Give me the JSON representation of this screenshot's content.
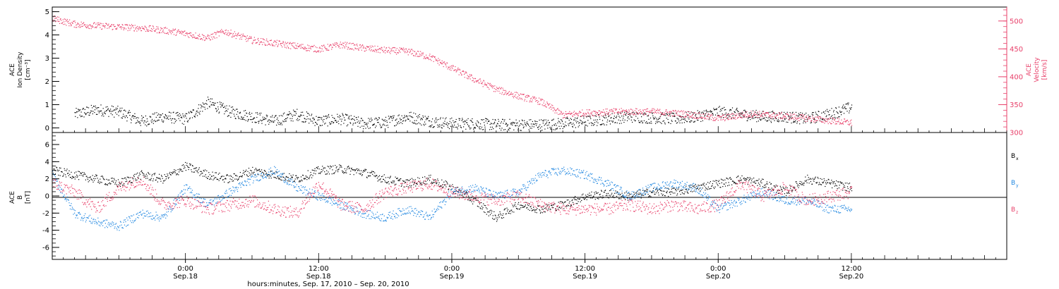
{
  "colors": {
    "density": "#000000",
    "velocity": "#e8406a",
    "bx": "#000000",
    "by": "#1f86e0",
    "bz": "#e8406a",
    "frame": "#000000"
  },
  "x_axis": {
    "title": "hours:minutes, Sep. 17, 2010 – Sep. 20, 2010",
    "ticks": [
      {
        "time": "Sep.18 00:00",
        "hour": 24,
        "label_time": "0:00",
        "label_date": "Sep.18"
      },
      {
        "time": "Sep.18 12:00",
        "hour": 36,
        "label_time": "12:00",
        "label_date": "Sep.18"
      },
      {
        "time": "Sep.19 00:00",
        "hour": 48,
        "label_time": "0:00",
        "label_date": "Sep.19"
      },
      {
        "time": "Sep.19 12:00",
        "hour": 60,
        "label_time": "12:00",
        "label_date": "Sep.19"
      },
      {
        "time": "Sep.20 00:00",
        "hour": 72,
        "label_time": "0:00",
        "label_date": "Sep.20"
      },
      {
        "time": "Sep.20 12:00",
        "hour": 84,
        "label_time": "12:00",
        "label_date": "Sep.20"
      }
    ]
  },
  "chart_data": [
    {
      "type": "scatter",
      "panel": "plasma",
      "xlim": [
        "Sep.17 12:00",
        "Sep.21 02:00"
      ],
      "left_axis": {
        "label_line1": "ACE",
        "label_line2": "Ion Density",
        "label_line3": "[cm⁻³]",
        "ylim": [
          -0.2,
          5.2
        ],
        "ticks": [
          0,
          1,
          2,
          3,
          4,
          5
        ]
      },
      "right_axis": {
        "label_line1": "ACE",
        "label_line2": "Velocity",
        "label_line3": "[km/s]",
        "ylim": [
          300,
          525
        ],
        "ticks": [
          300,
          350,
          400,
          450,
          500
        ]
      },
      "grid": false,
      "series": [
        {
          "key": "density",
          "axis": "left",
          "spread": 0.25,
          "x": [
            "Sep.17 14:00",
            "Sep.17 16:00",
            "Sep.17 18:00",
            "Sep.17 20:00",
            "Sep.17 22:00",
            "Sep.18 00:00",
            "Sep.18 02:00",
            "Sep.18 04:00",
            "Sep.18 06:00",
            "Sep.18 08:00",
            "Sep.18 10:00",
            "Sep.18 12:00",
            "Sep.18 14:00",
            "Sep.18 16:00",
            "Sep.18 18:00",
            "Sep.18 20:00",
            "Sep.18 22:00",
            "Sep.19 00:00",
            "Sep.19 02:00",
            "Sep.19 04:00",
            "Sep.19 06:00",
            "Sep.19 08:00",
            "Sep.19 10:00",
            "Sep.19 12:00",
            "Sep.19 14:00",
            "Sep.19 16:00",
            "Sep.19 18:00",
            "Sep.19 20:00",
            "Sep.19 22:00",
            "Sep.20 00:00",
            "Sep.20 02:00",
            "Sep.20 04:00",
            "Sep.20 06:00",
            "Sep.20 08:00",
            "Sep.20 10:00",
            "Sep.20 12:00"
          ],
          "y": [
            0.6,
            0.8,
            0.7,
            0.3,
            0.5,
            0.4,
            1.1,
            0.7,
            0.5,
            0.3,
            0.6,
            0.3,
            0.4,
            0.2,
            0.25,
            0.5,
            0.3,
            0.2,
            0.2,
            0.15,
            0.15,
            0.15,
            0.2,
            0.3,
            0.4,
            0.5,
            0.45,
            0.4,
            0.5,
            0.7,
            0.6,
            0.5,
            0.5,
            0.4,
            0.6,
            0.9
          ]
        },
        {
          "key": "velocity",
          "axis": "right",
          "spread": 6,
          "x": [
            "Sep.17 12:00",
            "Sep.17 14:00",
            "Sep.17 16:00",
            "Sep.17 18:00",
            "Sep.17 20:00",
            "Sep.17 22:00",
            "Sep.18 00:00",
            "Sep.18 02:00",
            "Sep.18 03:30",
            "Sep.18 06:00",
            "Sep.18 09:00",
            "Sep.18 12:00",
            "Sep.18 14:00",
            "Sep.18 16:00",
            "Sep.18 18:00",
            "Sep.18 20:00",
            "Sep.18 22:00",
            "Sep.19 00:00",
            "Sep.19 02:00",
            "Sep.19 04:00",
            "Sep.19 06:00",
            "Sep.19 08:00",
            "Sep.19 10:00",
            "Sep.19 12:00",
            "Sep.19 15:00",
            "Sep.19 18:00",
            "Sep.19 21:00",
            "Sep.20 00:00",
            "Sep.20 03:00",
            "Sep.20 06:00",
            "Sep.20 09:00",
            "Sep.20 12:00"
          ],
          "y": [
            505,
            495,
            492,
            490,
            488,
            484,
            478,
            470,
            482,
            466,
            458,
            450,
            458,
            452,
            448,
            446,
            436,
            416,
            396,
            378,
            366,
            356,
            332,
            336,
            338,
            338,
            334,
            326,
            334,
            330,
            324,
            318
          ]
        }
      ]
    },
    {
      "type": "scatter",
      "panel": "magnetic",
      "xlim": [
        "Sep.17 12:00",
        "Sep.21 02:00"
      ],
      "left_axis": {
        "label_line1": "ACE",
        "label_line2": "B",
        "label_line3": "[nT]",
        "ylim": [
          -7.4,
          7.4
        ],
        "ticks": [
          -6,
          -4,
          -2,
          0,
          2,
          4,
          6
        ]
      },
      "zero_line": true,
      "grid": false,
      "series": [
        {
          "key": "bx",
          "name": "B",
          "subscript": "x",
          "spread": 0.5,
          "x": [
            "Sep.17 12:00",
            "Sep.17 14:00",
            "Sep.17 16:00",
            "Sep.17 18:00",
            "Sep.17 20:00",
            "Sep.17 22:00",
            "Sep.18 00:00",
            "Sep.18 02:00",
            "Sep.18 04:00",
            "Sep.18 06:00",
            "Sep.18 08:00",
            "Sep.18 10:00",
            "Sep.18 12:00",
            "Sep.18 14:00",
            "Sep.18 16:00",
            "Sep.18 18:00",
            "Sep.18 20:00",
            "Sep.18 22:00",
            "Sep.19 00:00",
            "Sep.19 02:00",
            "Sep.19 04:00",
            "Sep.19 06:00",
            "Sep.19 08:00",
            "Sep.19 10:00",
            "Sep.19 12:00",
            "Sep.19 14:00",
            "Sep.19 16:00",
            "Sep.19 18:00",
            "Sep.19 20:00",
            "Sep.19 22:00",
            "Sep.20 00:00",
            "Sep.20 02:00",
            "Sep.20 04:00",
            "Sep.20 06:00",
            "Sep.20 08:00",
            "Sep.20 10:00",
            "Sep.20 12:00"
          ],
          "y": [
            3.0,
            2.5,
            2.0,
            1.5,
            2.5,
            2.0,
            3.5,
            2.5,
            2.0,
            3.0,
            2.5,
            2.0,
            3.0,
            3.2,
            2.8,
            2.0,
            1.5,
            2.0,
            1.0,
            -0.5,
            -2.5,
            -1.0,
            -1.5,
            -1.0,
            0.0,
            0.3,
            0.0,
            0.5,
            0.5,
            1.0,
            1.5,
            2.0,
            1.5,
            0.5,
            2.0,
            1.5,
            1.0
          ]
        },
        {
          "key": "by",
          "name": "B",
          "subscript": "y",
          "spread": 0.5,
          "x": [
            "Sep.17 12:00",
            "Sep.17 14:00",
            "Sep.17 16:00",
            "Sep.17 18:00",
            "Sep.17 20:00",
            "Sep.17 22:00",
            "Sep.18 00:00",
            "Sep.18 02:00",
            "Sep.18 04:00",
            "Sep.18 06:00",
            "Sep.18 08:00",
            "Sep.18 10:00",
            "Sep.18 12:00",
            "Sep.18 14:00",
            "Sep.18 16:00",
            "Sep.18 18:00",
            "Sep.18 20:00",
            "Sep.18 22:00",
            "Sep.19 00:00",
            "Sep.19 02:00",
            "Sep.19 04:00",
            "Sep.19 06:00",
            "Sep.19 08:00",
            "Sep.19 10:00",
            "Sep.19 12:00",
            "Sep.19 14:00",
            "Sep.19 16:00",
            "Sep.19 18:00",
            "Sep.19 20:00",
            "Sep.19 22:00",
            "Sep.20 00:00",
            "Sep.20 02:00",
            "Sep.20 04:00",
            "Sep.20 06:00",
            "Sep.20 08:00",
            "Sep.20 10:00",
            "Sep.20 12:00"
          ],
          "y": [
            2.5,
            -2.0,
            -3.0,
            -3.5,
            -2.0,
            -2.5,
            1.0,
            -1.0,
            0.5,
            2.0,
            3.0,
            1.0,
            0.0,
            -1.0,
            -2.0,
            -2.5,
            -1.5,
            -2.5,
            0.5,
            1.0,
            0.0,
            0.5,
            2.5,
            3.0,
            2.5,
            1.5,
            0.0,
            1.0,
            1.5,
            1.0,
            -1.5,
            -0.5,
            0.5,
            -0.5,
            -0.5,
            -1.5,
            -1.5
          ]
        },
        {
          "key": "bz",
          "name": "B",
          "subscript": "z",
          "spread": 0.7,
          "x": [
            "Sep.17 12:00",
            "Sep.17 14:00",
            "Sep.17 16:00",
            "Sep.17 18:00",
            "Sep.17 20:00",
            "Sep.17 22:00",
            "Sep.18 00:00",
            "Sep.18 02:00",
            "Sep.18 04:00",
            "Sep.18 06:00",
            "Sep.18 08:00",
            "Sep.18 10:00",
            "Sep.18 12:00",
            "Sep.18 14:00",
            "Sep.18 16:00",
            "Sep.18 18:00",
            "Sep.18 20:00",
            "Sep.18 22:00",
            "Sep.19 00:00",
            "Sep.19 02:00",
            "Sep.19 04:00",
            "Sep.19 06:00",
            "Sep.19 08:00",
            "Sep.19 10:00",
            "Sep.19 12:00",
            "Sep.19 14:00",
            "Sep.19 16:00",
            "Sep.19 18:00",
            "Sep.19 20:00",
            "Sep.19 22:00",
            "Sep.20 00:00",
            "Sep.20 02:00",
            "Sep.20 04:00",
            "Sep.20 06:00",
            "Sep.20 08:00",
            "Sep.20 10:00",
            "Sep.20 12:00"
          ],
          "y": [
            1.5,
            0.5,
            -1.5,
            1.0,
            2.0,
            -1.0,
            -0.5,
            -1.5,
            -1.0,
            -0.5,
            -1.5,
            -2.0,
            1.5,
            -1.0,
            -1.5,
            0.5,
            1.0,
            1.5,
            0.5,
            0.0,
            -0.5,
            0.0,
            -1.0,
            -1.5,
            -1.5,
            -1.5,
            -1.0,
            -1.5,
            -1.0,
            -1.5,
            -1.0,
            1.5,
            0.0,
            1.0,
            -0.5,
            0.0,
            0.5
          ]
        }
      ]
    }
  ]
}
